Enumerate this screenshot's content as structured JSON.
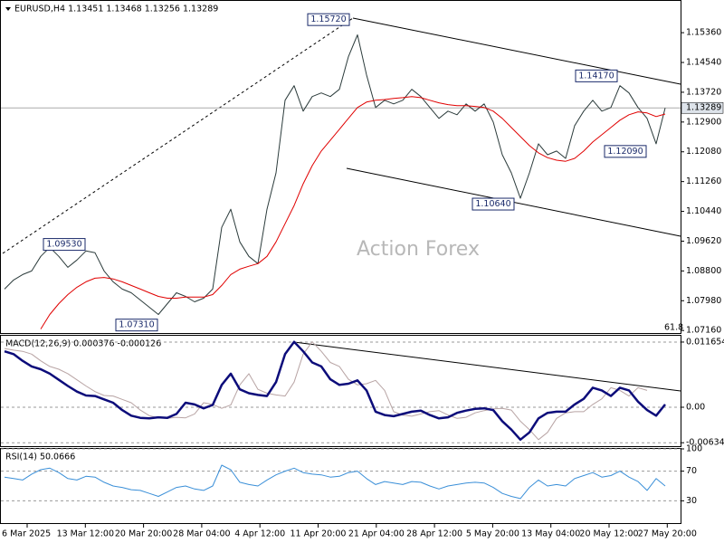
{
  "watermark": "Action Forex",
  "x_axis_labels": [
    "6 Mar 2025",
    "13 Mar 12:00",
    "20 Mar 20:00",
    "28 Mar 04:00",
    "4 Apr 12:00",
    "11 Apr 20:00",
    "21 Apr 04:00",
    "28 Apr 12:00",
    "5 May 20:00",
    "13 May 04:00",
    "20 May 12:00",
    "27 May 20:00"
  ],
  "chart_data": [
    {
      "type": "line",
      "title": "EURUSD,H4  1.13451 1.13468 1.13256 1.13289",
      "ylim": [
        1.0709,
        1.1621
      ],
      "yticks": [
        {
          "value": 1.1536,
          "label": "1.15360"
        },
        {
          "value": 1.1454,
          "label": "1.14540"
        },
        {
          "value": 1.1372,
          "label": "1.13720"
        },
        {
          "value": 1.129,
          "label": "1.12900"
        },
        {
          "value": 1.1208,
          "label": "1.12080"
        },
        {
          "value": 1.1126,
          "label": "1.11260"
        },
        {
          "value": 1.1044,
          "label": "1.10440"
        },
        {
          "value": 1.0962,
          "label": "1.09620"
        },
        {
          "value": 1.088,
          "label": "1.08800"
        },
        {
          "value": 1.0798,
          "label": "1.07980"
        },
        {
          "value": 1.0716,
          "label": "1.07160"
        }
      ],
      "grid": false,
      "last_price": {
        "value": 1.13289,
        "label": "1.13289"
      },
      "annotations": [
        {
          "value": 1.1572,
          "label": "1.15720"
        },
        {
          "value": 1.1417,
          "label": "1.14170"
        },
        {
          "value": 1.1209,
          "label": "1.12090"
        },
        {
          "value": 1.1064,
          "label": "1.10640"
        },
        {
          "value": 1.0953,
          "label": "1.09530"
        },
        {
          "value": 1.0731,
          "label": "1.07310"
        }
      ],
      "fib_level_label": "61.8",
      "series": [
        {
          "color": "#2b3b3b",
          "width": 1,
          "values": [
            1.083,
            1.0855,
            1.087,
            1.088,
            1.092,
            1.0945,
            1.092,
            1.089,
            1.091,
            1.0935,
            1.093,
            1.088,
            1.085,
            1.083,
            1.082,
            1.08,
            1.078,
            1.076,
            1.079,
            1.082,
            1.081,
            1.0795,
            1.0805,
            1.083,
            1.1,
            1.105,
            1.096,
            1.092,
            1.09,
            1.105,
            1.115,
            1.135,
            1.139,
            1.132,
            1.136,
            1.137,
            1.136,
            1.138,
            1.147,
            1.153,
            1.142,
            1.133,
            1.135,
            1.134,
            1.135,
            1.138,
            1.136,
            1.133,
            1.13,
            1.132,
            1.131,
            1.134,
            1.132,
            1.134,
            1.129,
            1.12,
            1.115,
            1.108,
            1.115,
            1.123,
            1.12,
            1.121,
            1.119,
            1.128,
            1.132,
            1.135,
            1.132,
            1.133,
            1.139,
            1.137,
            1.133,
            1.13,
            1.123,
            1.1329
          ]
        },
        {
          "color": "#e00000",
          "width": 1,
          "values": [
            null,
            null,
            null,
            null,
            1.072,
            1.076,
            1.079,
            1.0815,
            1.0835,
            1.085,
            1.086,
            1.0862,
            1.0858,
            1.085,
            1.084,
            1.083,
            1.082,
            1.081,
            1.0805,
            1.0805,
            1.0808,
            1.0808,
            1.0808,
            1.0815,
            1.084,
            1.087,
            1.0885,
            1.0893,
            1.09,
            1.092,
            1.096,
            1.101,
            1.106,
            1.112,
            1.117,
            1.121,
            1.124,
            1.127,
            1.13,
            1.133,
            1.1345,
            1.135,
            1.1352,
            1.1355,
            1.1357,
            1.136,
            1.1357,
            1.135,
            1.1343,
            1.1338,
            1.1335,
            1.1335,
            1.1333,
            1.133,
            1.132,
            1.13,
            1.1275,
            1.125,
            1.1225,
            1.1205,
            1.1192,
            1.1185,
            1.1182,
            1.119,
            1.121,
            1.1235,
            1.1255,
            1.1275,
            1.1295,
            1.131,
            1.1318,
            1.1315,
            1.1305,
            1.1312
          ]
        }
      ]
    },
    {
      "type": "line",
      "title": "MACD(12,26,9) 0.000376 -0.000126",
      "ylim": [
        -0.00696,
        0.01278
      ],
      "yticks": [
        0.011654,
        {
          "value": 0,
          "label": "0.00"
        },
        -0.006345
      ],
      "grid": true,
      "series": [
        {
          "color": "#b8a4a4",
          "width": 1,
          "values": [
            0.0105,
            0.0102,
            0.01,
            0.0095,
            0.0083,
            0.0073,
            0.0068,
            0.006,
            0.0049,
            0.0038,
            0.0028,
            0.0021,
            0.002,
            0.0014,
            0.0008,
            -0.0005,
            -0.0015,
            -0.0019,
            -0.002,
            -0.0018,
            -0.0019,
            -0.0012,
            0.0008,
            0.0005,
            -0.0002,
            0.0004,
            0.004,
            0.006,
            0.0032,
            0.0025,
            0.0022,
            0.002,
            0.0045,
            0.0095,
            0.0117,
            0.01,
            0.008,
            0.0073,
            0.005,
            0.004,
            0.0042,
            0.0048,
            0.003,
            -0.0008,
            -0.0014,
            -0.0016,
            -0.0012,
            -0.0008,
            -0.0006,
            -0.0014,
            -0.002,
            -0.0018,
            -0.001,
            -0.0006,
            -0.0003,
            -0.0002,
            -0.0005,
            -0.0025,
            -0.004,
            -0.0058,
            -0.0045,
            -0.002,
            -0.001,
            -0.0008,
            -0.0008,
            0.0005,
            0.0015,
            0.0035,
            0.003,
            0.002,
            0.0035,
            0.003
          ]
        },
        {
          "color": "#0c0c7a",
          "width": 2.5,
          "values": [
            0.01,
            0.0095,
            0.0083,
            0.0073,
            0.0068,
            0.006,
            0.0049,
            0.0038,
            0.0028,
            0.0021,
            0.002,
            0.0014,
            0.0008,
            -0.0005,
            -0.0015,
            -0.0019,
            -0.002,
            -0.0018,
            -0.0019,
            -0.0012,
            0.0008,
            0.0005,
            -0.0002,
            0.0004,
            0.004,
            0.006,
            0.0032,
            0.0025,
            0.0022,
            0.002,
            0.0045,
            0.0095,
            0.0117,
            0.01,
            0.008,
            0.0073,
            0.005,
            0.004,
            0.0042,
            0.0048,
            0.003,
            -0.0008,
            -0.0014,
            -0.0016,
            -0.0012,
            -0.0008,
            -0.0006,
            -0.0014,
            -0.002,
            -0.0018,
            -0.001,
            -0.0006,
            -0.0003,
            -0.0002,
            -0.0005,
            -0.0025,
            -0.004,
            -0.0058,
            -0.0045,
            -0.002,
            -0.001,
            -0.0008,
            -0.0008,
            0.0005,
            0.0015,
            0.0035,
            0.003,
            0.002,
            0.0035,
            0.003,
            0.001,
            -0.0005,
            -0.0015,
            0.0005
          ]
        }
      ]
    },
    {
      "type": "line",
      "title": "RSI(14) 50.0666",
      "ylim": [
        0,
        100
      ],
      "yticks": [
        100,
        70,
        30
      ],
      "grid": true,
      "series": [
        {
          "color": "#3a8fd8",
          "width": 1,
          "values": [
            62,
            60,
            58,
            66,
            72,
            74,
            68,
            60,
            58,
            63,
            62,
            55,
            50,
            48,
            45,
            44,
            40,
            36,
            42,
            48,
            50,
            46,
            44,
            50,
            78,
            72,
            55,
            52,
            50,
            58,
            65,
            70,
            74,
            68,
            66,
            65,
            62,
            63,
            68,
            70,
            60,
            52,
            56,
            54,
            52,
            56,
            55,
            50,
            46,
            50,
            52,
            54,
            55,
            54,
            48,
            40,
            36,
            33,
            48,
            58,
            50,
            52,
            50,
            60,
            64,
            68,
            62,
            64,
            70,
            62,
            56,
            44,
            60,
            50
          ]
        }
      ]
    }
  ]
}
